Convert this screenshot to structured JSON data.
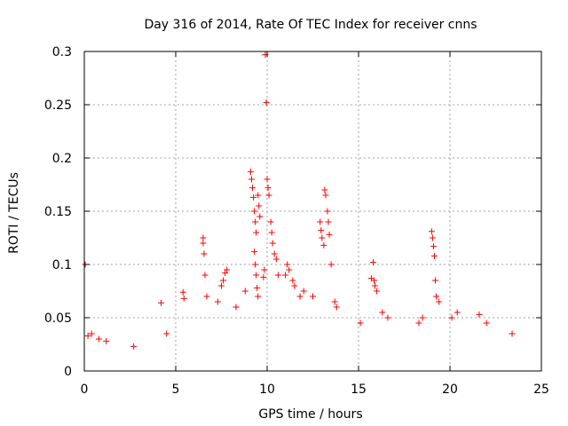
{
  "chart_data": {
    "type": "scatter",
    "title": "Day 316 of 2014, Rate Of TEC Index for receiver cnns",
    "xlabel": "GPS time / hours",
    "ylabel": "ROTI / TECUs",
    "xlim": [
      0,
      25
    ],
    "ylim": [
      0,
      0.3
    ],
    "xticks": [
      0,
      5,
      10,
      15,
      20,
      25
    ],
    "yticks": [
      0,
      0.05,
      0.1,
      0.15,
      0.2,
      0.25,
      0.3
    ],
    "xtick_labels": [
      "0",
      "5",
      "10",
      "15",
      "20",
      "25"
    ],
    "ytick_labels": [
      "0",
      "0.05",
      "0.1",
      "0.15",
      "0.2",
      "0.25",
      "0.3"
    ],
    "grid": true,
    "marker": "+",
    "marker_color": "#ff0000",
    "series": [
      {
        "name": "ROTI",
        "points": [
          [
            0.05,
            0.1
          ],
          [
            0.2,
            0.033
          ],
          [
            0.4,
            0.035
          ],
          [
            0.8,
            0.03
          ],
          [
            1.2,
            0.028
          ],
          [
            2.7,
            0.023
          ],
          [
            4.2,
            0.064
          ],
          [
            4.5,
            0.035
          ],
          [
            5.4,
            0.074
          ],
          [
            5.45,
            0.068
          ],
          [
            6.5,
            0.125
          ],
          [
            6.5,
            0.12
          ],
          [
            6.55,
            0.11
          ],
          [
            6.6,
            0.09
          ],
          [
            6.7,
            0.07
          ],
          [
            7.3,
            0.065
          ],
          [
            7.5,
            0.08
          ],
          [
            7.6,
            0.085
          ],
          [
            7.7,
            0.092
          ],
          [
            7.8,
            0.095
          ],
          [
            8.3,
            0.06
          ],
          [
            8.8,
            0.075
          ],
          [
            9.1,
            0.187
          ],
          [
            9.15,
            0.18
          ],
          [
            9.2,
            0.172
          ],
          [
            9.25,
            0.163
          ],
          [
            9.3,
            0.15
          ],
          [
            9.35,
            0.14
          ],
          [
            9.4,
            0.13
          ],
          [
            9.5,
            0.165
          ],
          [
            9.55,
            0.155
          ],
          [
            9.6,
            0.145
          ],
          [
            9.3,
            0.112
          ],
          [
            9.35,
            0.1
          ],
          [
            9.4,
            0.09
          ],
          [
            9.45,
            0.078
          ],
          [
            9.5,
            0.07
          ],
          [
            9.8,
            0.088
          ],
          [
            9.85,
            0.095
          ],
          [
            9.9,
            0.297
          ],
          [
            9.95,
            0.252
          ],
          [
            10.0,
            0.18
          ],
          [
            10.05,
            0.172
          ],
          [
            10.1,
            0.165
          ],
          [
            10.2,
            0.14
          ],
          [
            10.25,
            0.13
          ],
          [
            10.3,
            0.12
          ],
          [
            10.4,
            0.11
          ],
          [
            10.5,
            0.105
          ],
          [
            10.6,
            0.09
          ],
          [
            11.0,
            0.09
          ],
          [
            11.1,
            0.1
          ],
          [
            11.2,
            0.095
          ],
          [
            11.4,
            0.085
          ],
          [
            11.5,
            0.08
          ],
          [
            11.8,
            0.07
          ],
          [
            12.0,
            0.075
          ],
          [
            12.5,
            0.07
          ],
          [
            12.9,
            0.14
          ],
          [
            12.95,
            0.132
          ],
          [
            13.0,
            0.125
          ],
          [
            13.1,
            0.118
          ],
          [
            13.15,
            0.17
          ],
          [
            13.2,
            0.165
          ],
          [
            13.3,
            0.15
          ],
          [
            13.35,
            0.14
          ],
          [
            13.4,
            0.128
          ],
          [
            13.5,
            0.1
          ],
          [
            13.7,
            0.065
          ],
          [
            13.8,
            0.06
          ],
          [
            15.1,
            0.045
          ],
          [
            15.7,
            0.087
          ],
          [
            15.8,
            0.102
          ],
          [
            15.85,
            0.085
          ],
          [
            15.9,
            0.08
          ],
          [
            16.0,
            0.075
          ],
          [
            16.3,
            0.055
          ],
          [
            16.6,
            0.05
          ],
          [
            18.3,
            0.045
          ],
          [
            18.5,
            0.05
          ],
          [
            19.0,
            0.131
          ],
          [
            19.05,
            0.125
          ],
          [
            19.1,
            0.117
          ],
          [
            19.15,
            0.108
          ],
          [
            19.2,
            0.085
          ],
          [
            19.25,
            0.07
          ],
          [
            19.4,
            0.065
          ],
          [
            20.1,
            0.05
          ],
          [
            20.4,
            0.055
          ],
          [
            21.6,
            0.053
          ],
          [
            22.0,
            0.045
          ],
          [
            23.4,
            0.035
          ]
        ]
      }
    ]
  }
}
